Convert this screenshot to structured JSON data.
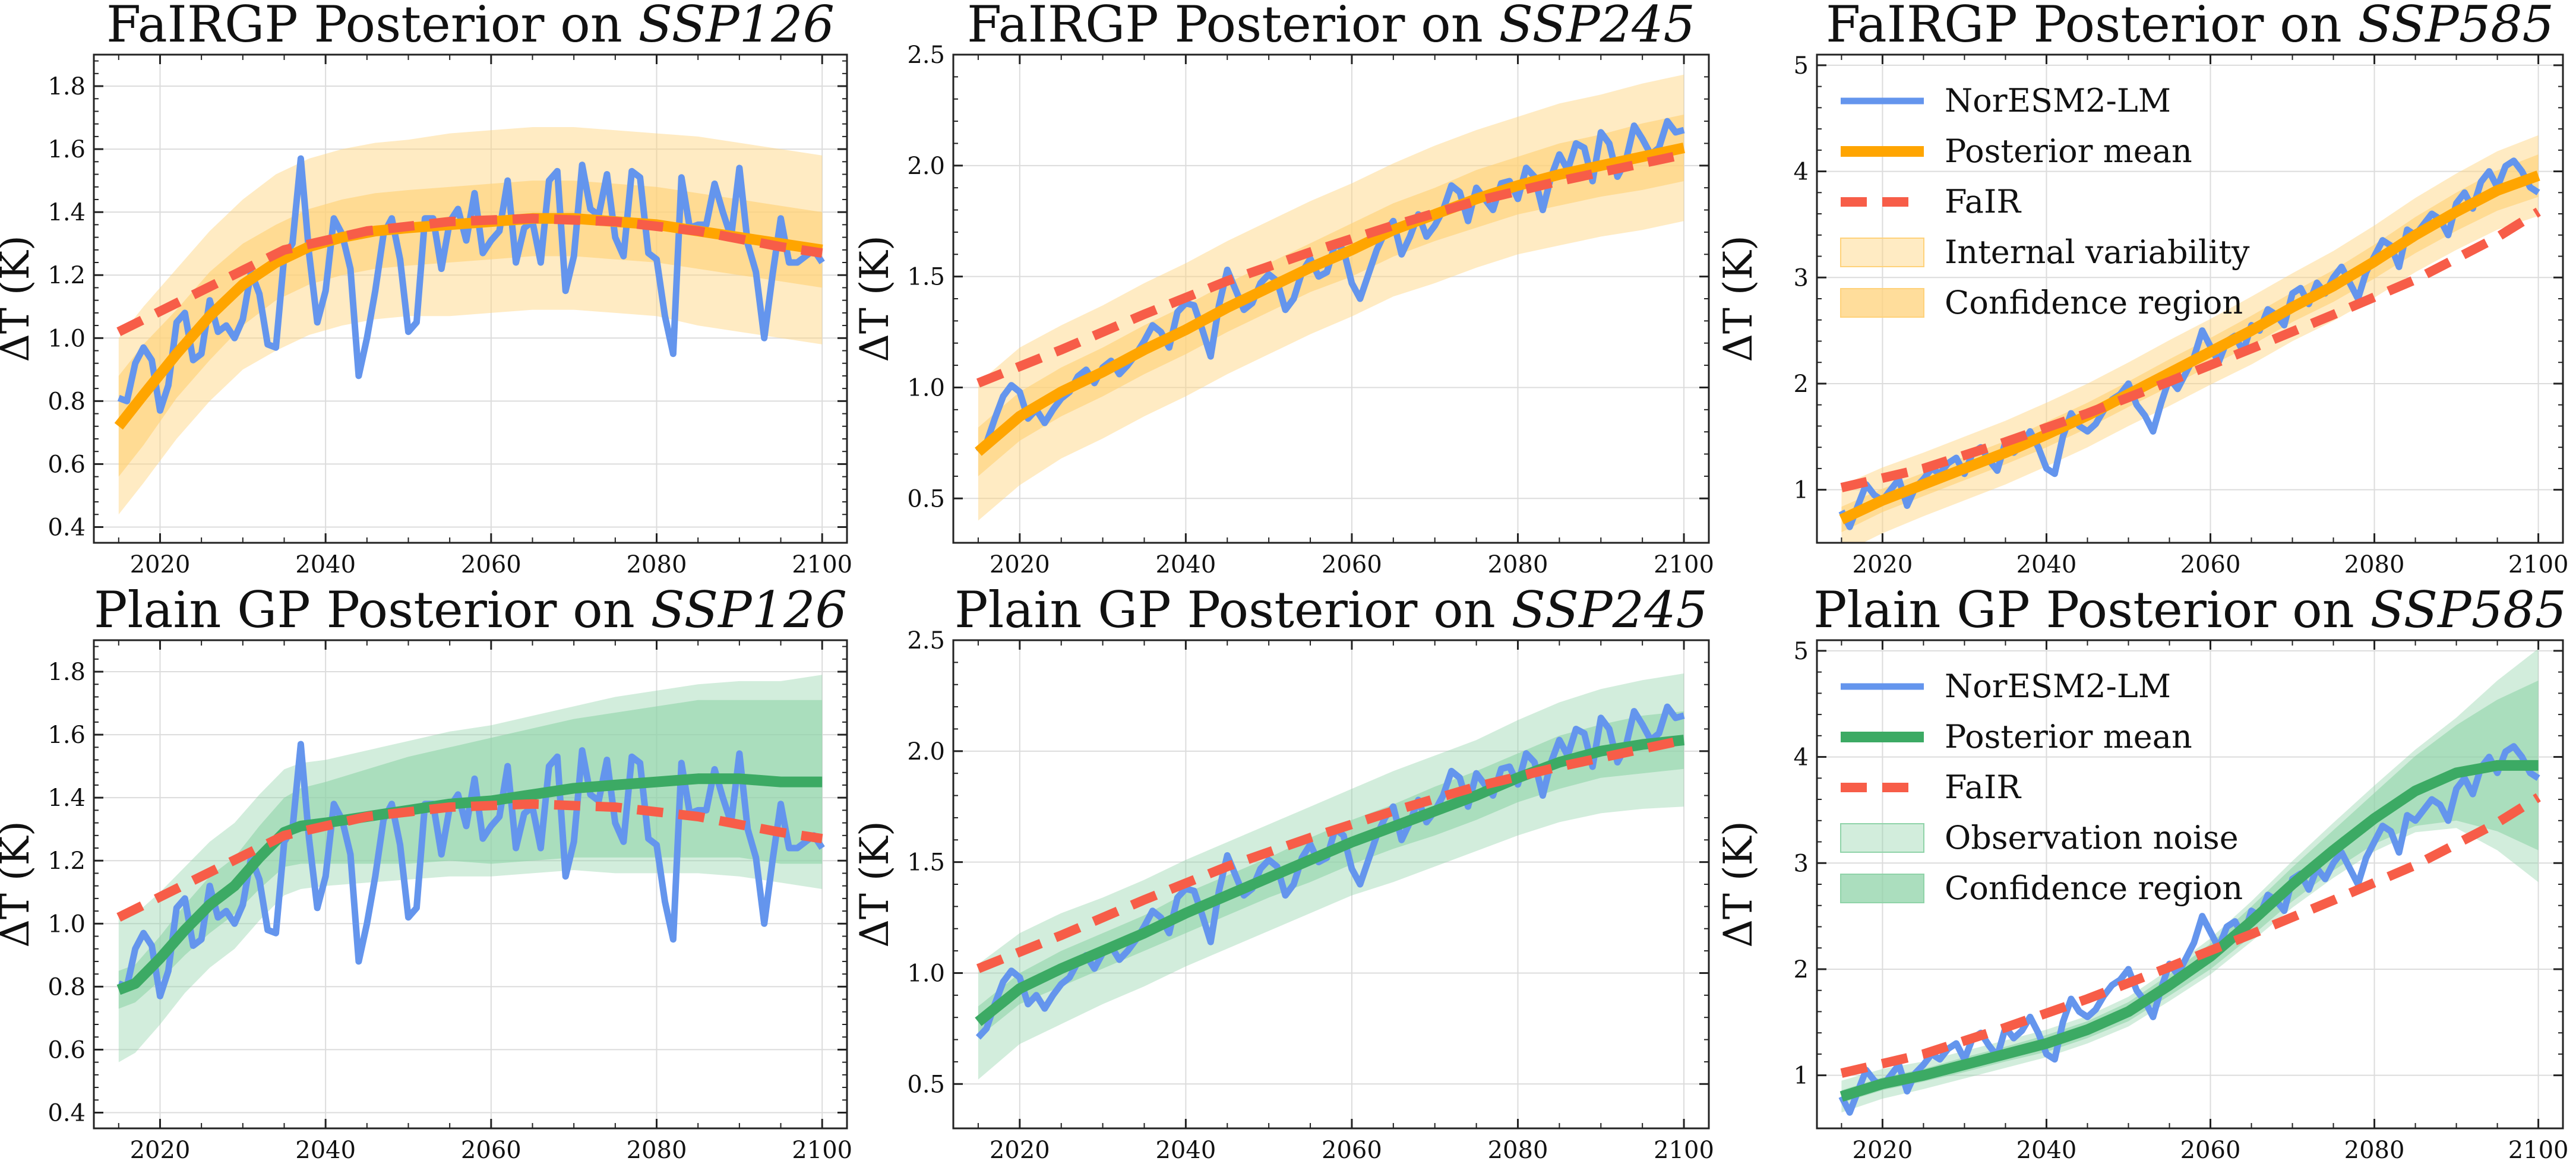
{
  "colors": {
    "obs": "#6495ED",
    "fair": "#F75D48",
    "orange": "#FFA500",
    "green": "#3CAA64",
    "orange_band": "#FFD27A",
    "green_band": "#8FD3A8"
  },
  "legend": {
    "fairgp": [
      "NorESM2-LM",
      "Posterior mean",
      "FaIR",
      "Internal variability",
      "Confidence region"
    ],
    "plain": [
      "NorESM2-LM",
      "Posterior mean",
      "FaIR",
      "Observation noise",
      "Confidence region"
    ]
  },
  "chart_data": [
    {
      "type": "line",
      "model": "FaIRGP",
      "title_prefix": "FaIRGP Posterior on ",
      "title_scenario": "SSP126",
      "ylabel": "ΔT (K)",
      "xlim": [
        2012,
        2103
      ],
      "ylim": [
        0.35,
        1.9
      ],
      "yticks": [
        0.4,
        0.6,
        0.8,
        1.0,
        1.2,
        1.4,
        1.6,
        1.8
      ],
      "yfmt": 1,
      "xticks": [
        2020,
        2040,
        2060,
        2080,
        2100
      ],
      "legend": "none",
      "scenario": "ssp126"
    },
    {
      "type": "line",
      "model": "FaIRGP",
      "title_prefix": "FaIRGP Posterior on ",
      "title_scenario": "SSP245",
      "ylabel": "ΔT (K)",
      "xlim": [
        2012,
        2103
      ],
      "ylim": [
        0.3,
        2.5
      ],
      "yticks": [
        0.5,
        1.0,
        1.5,
        2.0,
        2.5
      ],
      "yfmt": 1,
      "xticks": [
        2020,
        2040,
        2060,
        2080,
        2100
      ],
      "legend": "none",
      "scenario": "ssp245"
    },
    {
      "type": "line",
      "model": "FaIRGP",
      "title_prefix": "FaIRGP Posterior on ",
      "title_scenario": "SSP585",
      "ylabel": "ΔT (K)",
      "xlim": [
        2012,
        2103
      ],
      "ylim": [
        0.5,
        5.1
      ],
      "yticks": [
        1,
        2,
        3,
        4,
        5
      ],
      "yfmt": 0,
      "xticks": [
        2020,
        2040,
        2060,
        2080,
        2100
      ],
      "legend": "upper-left",
      "scenario": "ssp585"
    },
    {
      "type": "line",
      "model": "Plain",
      "title_prefix": "Plain GP Posterior on ",
      "title_scenario": "SSP126",
      "ylabel": "ΔT (K)",
      "xlim": [
        2012,
        2103
      ],
      "ylim": [
        0.35,
        1.9
      ],
      "yticks": [
        0.4,
        0.6,
        0.8,
        1.0,
        1.2,
        1.4,
        1.6,
        1.8
      ],
      "yfmt": 1,
      "xticks": [
        2020,
        2040,
        2060,
        2080,
        2100
      ],
      "legend": "none",
      "scenario": "ssp126"
    },
    {
      "type": "line",
      "model": "Plain",
      "title_prefix": "Plain GP Posterior on ",
      "title_scenario": "SSP245",
      "ylabel": "ΔT (K)",
      "xlim": [
        2012,
        2103
      ],
      "ylim": [
        0.3,
        2.5
      ],
      "yticks": [
        0.5,
        1.0,
        1.5,
        2.0,
        2.5
      ],
      "yfmt": 1,
      "xticks": [
        2020,
        2040,
        2060,
        2080,
        2100
      ],
      "legend": "none",
      "scenario": "ssp245"
    },
    {
      "type": "line",
      "model": "Plain",
      "title_prefix": "Plain GP Posterior on ",
      "title_scenario": "SSP585",
      "ylabel": "ΔT (K)",
      "xlim": [
        2012,
        2103
      ],
      "ylim": [
        0.5,
        5.1
      ],
      "yticks": [
        1,
        2,
        3,
        4,
        5
      ],
      "yfmt": 0,
      "xticks": [
        2020,
        2040,
        2060,
        2080,
        2100
      ],
      "legend": "upper-left",
      "scenario": "ssp585"
    }
  ],
  "series_data": {
    "ssp126": {
      "obs_x": [
        2015,
        2016,
        2017,
        2018,
        2019,
        2020,
        2021,
        2022,
        2023,
        2024,
        2025,
        2026,
        2027,
        2028,
        2029,
        2030,
        2031,
        2032,
        2033,
        2034,
        2035,
        2036,
        2037,
        2038,
        2039,
        2040,
        2041,
        2042,
        2043,
        2044,
        2045,
        2046,
        2047,
        2048,
        2049,
        2050,
        2051,
        2052,
        2053,
        2054,
        2055,
        2056,
        2057,
        2058,
        2059,
        2060,
        2061,
        2062,
        2063,
        2064,
        2065,
        2066,
        2067,
        2068,
        2069,
        2070,
        2071,
        2072,
        2073,
        2074,
        2075,
        2076,
        2077,
        2078,
        2079,
        2080,
        2081,
        2082,
        2083,
        2084,
        2085,
        2086,
        2087,
        2088,
        2089,
        2090,
        2091,
        2092,
        2093,
        2094,
        2095,
        2096,
        2097,
        2098,
        2099,
        2100
      ],
      "obs_y": [
        0.81,
        0.8,
        0.92,
        0.97,
        0.93,
        0.77,
        0.85,
        1.05,
        1.08,
        0.93,
        0.95,
        1.12,
        1.02,
        1.04,
        1.0,
        1.06,
        1.21,
        1.14,
        0.98,
        0.97,
        1.26,
        1.3,
        1.57,
        1.27,
        1.05,
        1.15,
        1.38,
        1.33,
        1.22,
        0.88,
        1.0,
        1.15,
        1.33,
        1.38,
        1.25,
        1.02,
        1.05,
        1.38,
        1.38,
        1.22,
        1.37,
        1.41,
        1.31,
        1.46,
        1.27,
        1.31,
        1.34,
        1.5,
        1.24,
        1.35,
        1.37,
        1.24,
        1.5,
        1.53,
        1.15,
        1.26,
        1.55,
        1.41,
        1.39,
        1.52,
        1.32,
        1.26,
        1.53,
        1.51,
        1.27,
        1.25,
        1.07,
        0.95,
        1.51,
        1.35,
        1.36,
        1.36,
        1.49,
        1.4,
        1.32,
        1.54,
        1.3,
        1.21,
        1.0,
        1.2,
        1.38,
        1.24,
        1.24,
        1.26,
        1.28,
        1.24
      ],
      "fair_x": [
        2015,
        2025,
        2035,
        2045,
        2055,
        2065,
        2075,
        2085,
        2095,
        2100
      ],
      "fair_y": [
        1.02,
        1.15,
        1.28,
        1.34,
        1.37,
        1.38,
        1.37,
        1.34,
        1.29,
        1.27
      ],
      "fgp_x": [
        2015,
        2018,
        2022,
        2026,
        2030,
        2034,
        2038,
        2042,
        2046,
        2050,
        2055,
        2060,
        2065,
        2070,
        2075,
        2080,
        2085,
        2090,
        2095,
        2100
      ],
      "fgp_mean": [
        0.72,
        0.82,
        0.95,
        1.07,
        1.17,
        1.24,
        1.29,
        1.32,
        1.34,
        1.35,
        1.36,
        1.37,
        1.38,
        1.38,
        1.37,
        1.36,
        1.34,
        1.32,
        1.3,
        1.28
      ],
      "fgp_conf": [
        0.16,
        0.16,
        0.14,
        0.14,
        0.13,
        0.12,
        0.12,
        0.12,
        0.12,
        0.12,
        0.12,
        0.12,
        0.12,
        0.12,
        0.12,
        0.12,
        0.12,
        0.12,
        0.12,
        0.12
      ],
      "fgp_iv": [
        0.28,
        0.28,
        0.27,
        0.27,
        0.27,
        0.28,
        0.28,
        0.28,
        0.28,
        0.28,
        0.29,
        0.29,
        0.29,
        0.29,
        0.29,
        0.29,
        0.3,
        0.3,
        0.3,
        0.3
      ],
      "pgp_x": [
        2015,
        2017,
        2020,
        2023,
        2026,
        2029,
        2032,
        2035,
        2037,
        2040,
        2045,
        2050,
        2055,
        2060,
        2065,
        2070,
        2075,
        2080,
        2085,
        2090,
        2095,
        2100
      ],
      "pgp_mean": [
        0.79,
        0.81,
        0.89,
        0.98,
        1.06,
        1.12,
        1.21,
        1.29,
        1.31,
        1.32,
        1.34,
        1.36,
        1.38,
        1.39,
        1.41,
        1.43,
        1.44,
        1.45,
        1.46,
        1.46,
        1.45,
        1.45
      ],
      "pgp_conf": [
        0.06,
        0.06,
        0.07,
        0.08,
        0.09,
        0.09,
        0.1,
        0.11,
        0.12,
        0.13,
        0.15,
        0.17,
        0.18,
        0.2,
        0.21,
        0.22,
        0.23,
        0.24,
        0.25,
        0.25,
        0.26,
        0.26
      ],
      "pgp_obs": [
        0.23,
        0.22,
        0.21,
        0.2,
        0.2,
        0.2,
        0.2,
        0.2,
        0.2,
        0.2,
        0.21,
        0.22,
        0.23,
        0.24,
        0.25,
        0.26,
        0.28,
        0.29,
        0.3,
        0.31,
        0.32,
        0.34
      ]
    },
    "ssp245": {
      "obs_x": [
        2015,
        2016,
        2017,
        2018,
        2019,
        2020,
        2021,
        2022,
        2023,
        2024,
        2025,
        2026,
        2027,
        2028,
        2029,
        2030,
        2031,
        2032,
        2033,
        2034,
        2035,
        2036,
        2037,
        2038,
        2039,
        2040,
        2041,
        2042,
        2043,
        2044,
        2045,
        2046,
        2047,
        2048,
        2049,
        2050,
        2051,
        2052,
        2053,
        2054,
        2055,
        2056,
        2057,
        2058,
        2059,
        2060,
        2061,
        2062,
        2063,
        2064,
        2065,
        2066,
        2067,
        2068,
        2069,
        2070,
        2071,
        2072,
        2073,
        2074,
        2075,
        2076,
        2077,
        2078,
        2079,
        2080,
        2081,
        2082,
        2083,
        2084,
        2085,
        2086,
        2087,
        2088,
        2089,
        2090,
        2091,
        2092,
        2093,
        2094,
        2095,
        2096,
        2097,
        2098,
        2099,
        2100
      ],
      "obs_y": [
        0.71,
        0.75,
        0.86,
        0.96,
        1.01,
        0.98,
        0.86,
        0.9,
        0.84,
        0.9,
        0.95,
        0.98,
        1.05,
        1.08,
        1.02,
        1.09,
        1.12,
        1.06,
        1.1,
        1.15,
        1.21,
        1.28,
        1.25,
        1.18,
        1.34,
        1.38,
        1.37,
        1.26,
        1.14,
        1.37,
        1.53,
        1.44,
        1.35,
        1.38,
        1.47,
        1.51,
        1.48,
        1.35,
        1.4,
        1.52,
        1.58,
        1.5,
        1.52,
        1.65,
        1.62,
        1.47,
        1.4,
        1.51,
        1.62,
        1.7,
        1.75,
        1.6,
        1.68,
        1.78,
        1.68,
        1.73,
        1.8,
        1.91,
        1.88,
        1.75,
        1.9,
        1.85,
        1.8,
        1.92,
        1.93,
        1.85,
        1.99,
        1.95,
        1.8,
        1.95,
        2.05,
        1.98,
        2.1,
        2.08,
        1.93,
        2.15,
        2.1,
        1.95,
        2.02,
        2.18,
        2.12,
        2.05,
        2.08,
        2.2,
        2.15,
        2.16
      ],
      "fair_x": [
        2015,
        2025,
        2035,
        2045,
        2055,
        2065,
        2075,
        2085,
        2095,
        2100
      ],
      "fair_y": [
        1.02,
        1.17,
        1.33,
        1.48,
        1.61,
        1.73,
        1.84,
        1.93,
        2.01,
        2.05
      ],
      "fgp_x": [
        2015,
        2020,
        2025,
        2030,
        2035,
        2040,
        2045,
        2050,
        2055,
        2060,
        2065,
        2070,
        2075,
        2080,
        2085,
        2090,
        2095,
        2100
      ],
      "fgp_mean": [
        0.71,
        0.87,
        0.98,
        1.07,
        1.17,
        1.26,
        1.36,
        1.45,
        1.54,
        1.62,
        1.71,
        1.78,
        1.85,
        1.91,
        1.96,
        2.0,
        2.04,
        2.08
      ],
      "fgp_conf": [
        0.11,
        0.11,
        0.11,
        0.11,
        0.11,
        0.11,
        0.11,
        0.11,
        0.11,
        0.12,
        0.12,
        0.12,
        0.13,
        0.13,
        0.14,
        0.14,
        0.15,
        0.15
      ],
      "fgp_iv": [
        0.31,
        0.31,
        0.3,
        0.3,
        0.3,
        0.3,
        0.3,
        0.3,
        0.3,
        0.3,
        0.3,
        0.31,
        0.31,
        0.31,
        0.32,
        0.32,
        0.33,
        0.33
      ],
      "pgp_x": [
        2015,
        2020,
        2025,
        2030,
        2035,
        2040,
        2045,
        2050,
        2055,
        2060,
        2065,
        2070,
        2075,
        2080,
        2085,
        2090,
        2095,
        2100
      ],
      "pgp_mean": [
        0.78,
        0.93,
        1.02,
        1.1,
        1.18,
        1.27,
        1.35,
        1.43,
        1.51,
        1.59,
        1.66,
        1.73,
        1.8,
        1.88,
        1.95,
        2.0,
        2.03,
        2.05
      ],
      "pgp_conf": [
        0.07,
        0.07,
        0.08,
        0.08,
        0.08,
        0.09,
        0.09,
        0.09,
        0.1,
        0.1,
        0.1,
        0.11,
        0.11,
        0.11,
        0.12,
        0.12,
        0.13,
        0.13
      ],
      "pgp_obs": [
        0.26,
        0.25,
        0.25,
        0.24,
        0.24,
        0.24,
        0.24,
        0.24,
        0.24,
        0.24,
        0.25,
        0.25,
        0.25,
        0.26,
        0.27,
        0.28,
        0.29,
        0.3
      ]
    },
    "ssp585": {
      "obs_x": [
        2015,
        2016,
        2017,
        2018,
        2019,
        2020,
        2021,
        2022,
        2023,
        2024,
        2025,
        2026,
        2027,
        2028,
        2029,
        2030,
        2031,
        2032,
        2033,
        2034,
        2035,
        2036,
        2037,
        2038,
        2039,
        2040,
        2041,
        2042,
        2043,
        2044,
        2045,
        2046,
        2047,
        2048,
        2049,
        2050,
        2051,
        2052,
        2053,
        2054,
        2055,
        2056,
        2057,
        2058,
        2059,
        2060,
        2061,
        2062,
        2063,
        2064,
        2065,
        2066,
        2067,
        2068,
        2069,
        2070,
        2071,
        2072,
        2073,
        2074,
        2075,
        2076,
        2077,
        2078,
        2079,
        2080,
        2081,
        2082,
        2083,
        2084,
        2085,
        2086,
        2087,
        2088,
        2089,
        2090,
        2091,
        2092,
        2093,
        2094,
        2095,
        2096,
        2097,
        2098,
        2099,
        2100
      ],
      "obs_y": [
        0.8,
        0.65,
        0.85,
        1.05,
        0.95,
        0.9,
        1.0,
        1.1,
        0.85,
        1.02,
        1.1,
        1.2,
        1.15,
        1.25,
        1.3,
        1.15,
        1.35,
        1.4,
        1.28,
        1.18,
        1.45,
        1.35,
        1.42,
        1.55,
        1.4,
        1.2,
        1.15,
        1.5,
        1.72,
        1.6,
        1.55,
        1.62,
        1.75,
        1.85,
        1.9,
        2.0,
        1.8,
        1.7,
        1.55,
        1.82,
        2.05,
        1.95,
        2.1,
        2.25,
        2.5,
        2.35,
        2.2,
        2.4,
        2.45,
        2.3,
        2.55,
        2.5,
        2.7,
        2.65,
        2.55,
        2.85,
        2.9,
        2.75,
        2.95,
        2.85,
        3.0,
        3.1,
        2.95,
        2.8,
        3.05,
        3.2,
        3.35,
        3.3,
        3.1,
        3.45,
        3.4,
        3.5,
        3.6,
        3.55,
        3.4,
        3.7,
        3.8,
        3.65,
        3.9,
        4.0,
        3.85,
        4.05,
        4.1,
        4.0,
        3.85,
        3.8
      ],
      "fair_x": [
        2015,
        2025,
        2035,
        2045,
        2055,
        2065,
        2075,
        2085,
        2095,
        2100
      ],
      "fair_y": [
        1.02,
        1.2,
        1.45,
        1.72,
        2.02,
        2.33,
        2.65,
        2.98,
        3.38,
        3.62
      ],
      "fgp_x": [
        2015,
        2020,
        2025,
        2030,
        2035,
        2040,
        2045,
        2050,
        2055,
        2060,
        2065,
        2070,
        2075,
        2080,
        2085,
        2090,
        2095,
        2100
      ],
      "fgp_mean": [
        0.72,
        0.9,
        1.05,
        1.2,
        1.35,
        1.52,
        1.7,
        1.9,
        2.1,
        2.3,
        2.5,
        2.72,
        2.92,
        3.15,
        3.4,
        3.62,
        3.82,
        3.96
      ],
      "fgp_conf": [
        0.12,
        0.11,
        0.11,
        0.11,
        0.11,
        0.12,
        0.12,
        0.12,
        0.13,
        0.13,
        0.14,
        0.14,
        0.15,
        0.16,
        0.17,
        0.18,
        0.19,
        0.2
      ],
      "fgp_iv": [
        0.32,
        0.31,
        0.3,
        0.3,
        0.3,
        0.3,
        0.3,
        0.3,
        0.31,
        0.31,
        0.32,
        0.32,
        0.33,
        0.34,
        0.35,
        0.36,
        0.37,
        0.38
      ],
      "pgp_x": [
        2015,
        2020,
        2025,
        2030,
        2035,
        2040,
        2045,
        2050,
        2055,
        2060,
        2065,
        2070,
        2075,
        2080,
        2085,
        2090,
        2095,
        2100
      ],
      "pgp_mean": [
        0.8,
        0.92,
        1.0,
        1.1,
        1.2,
        1.3,
        1.43,
        1.6,
        1.85,
        2.12,
        2.45,
        2.8,
        3.12,
        3.42,
        3.68,
        3.85,
        3.92,
        3.92
      ],
      "pgp_conf": [
        0.06,
        0.06,
        0.06,
        0.07,
        0.07,
        0.08,
        0.08,
        0.09,
        0.1,
        0.12,
        0.14,
        0.16,
        0.19,
        0.24,
        0.33,
        0.45,
        0.62,
        0.8
      ],
      "pgp_obs": [
        0.15,
        0.14,
        0.13,
        0.13,
        0.13,
        0.13,
        0.13,
        0.14,
        0.15,
        0.17,
        0.19,
        0.22,
        0.26,
        0.31,
        0.39,
        0.52,
        0.8,
        1.1
      ]
    }
  }
}
